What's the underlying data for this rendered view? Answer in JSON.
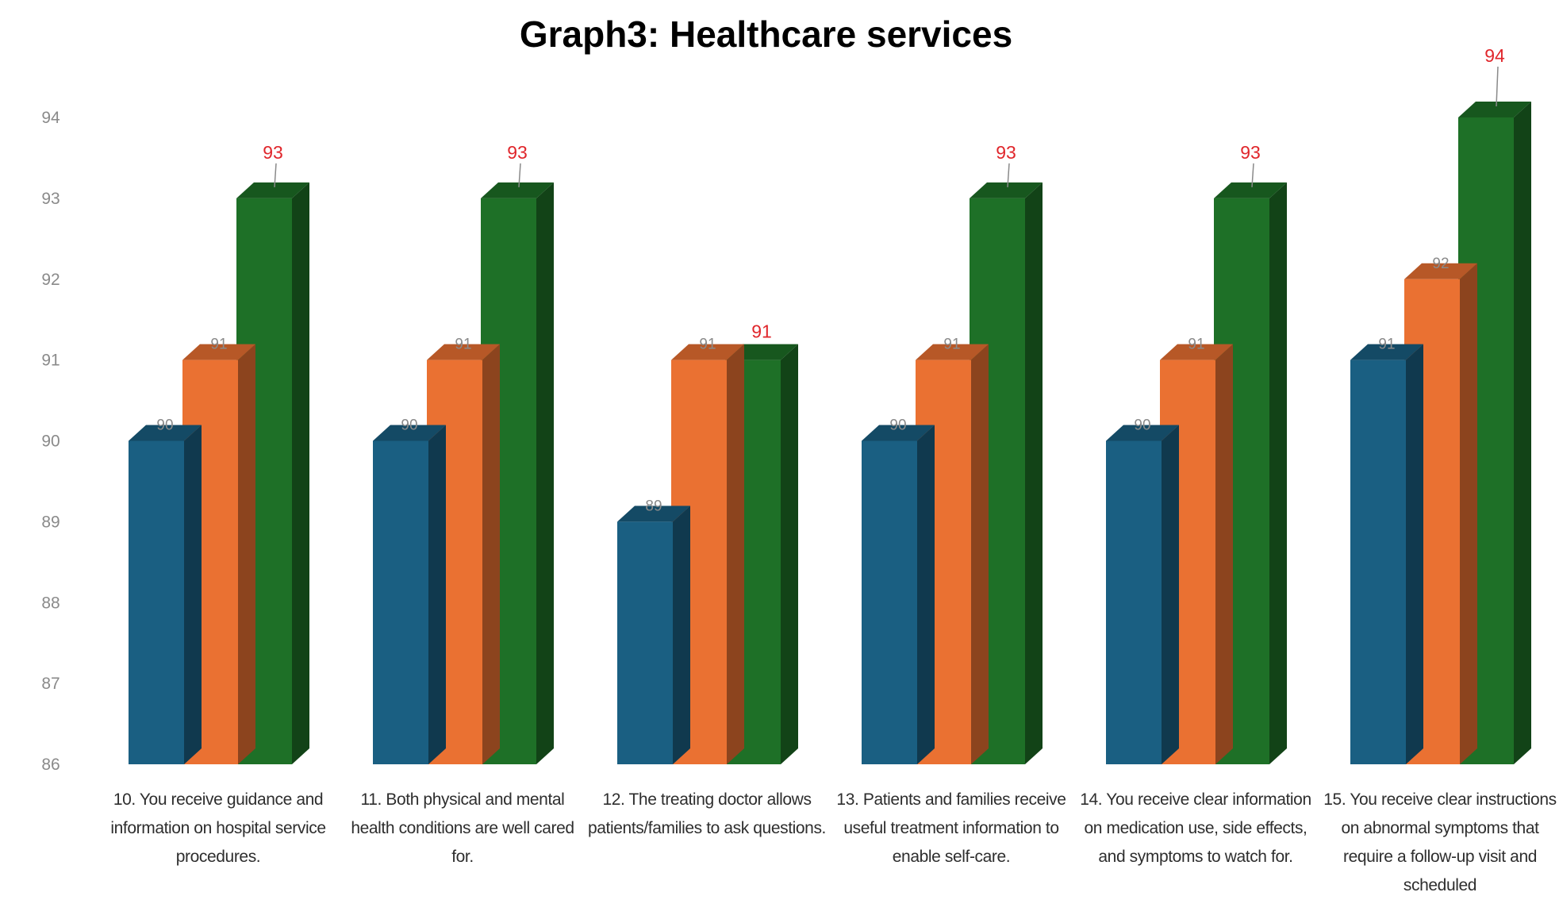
{
  "chart_data": {
    "type": "bar",
    "title": "Graph3: Healthcare services",
    "xlabel": "",
    "ylabel": "",
    "ylim": [
      86,
      94
    ],
    "yticks": [
      86,
      87,
      88,
      89,
      90,
      91,
      92,
      93,
      94
    ],
    "categories": [
      "10. You receive guidance and information on hospital service procedures.",
      "11. Both physical and mental health conditions are well cared for.",
      "12. The treating doctor allows patients/families to ask questions.",
      "13. Patients and families receive useful treatment information to enable self-care.",
      "14. You receive clear information on medication use, side effects, and symptoms to watch for.",
      "15. You receive clear instructions on abnormal symptoms that require a follow-up visit and scheduled"
    ],
    "series": [
      {
        "values": [
          90,
          90,
          89,
          90,
          90,
          91
        ],
        "color": "#1a5f82"
      },
      {
        "values": [
          91,
          91,
          91,
          91,
          91,
          92
        ],
        "color": "#ea7132"
      },
      {
        "values": [
          93,
          93,
          91,
          93,
          93,
          94
        ],
        "color": "#1e7027"
      }
    ],
    "grid": false,
    "legend": "none"
  }
}
